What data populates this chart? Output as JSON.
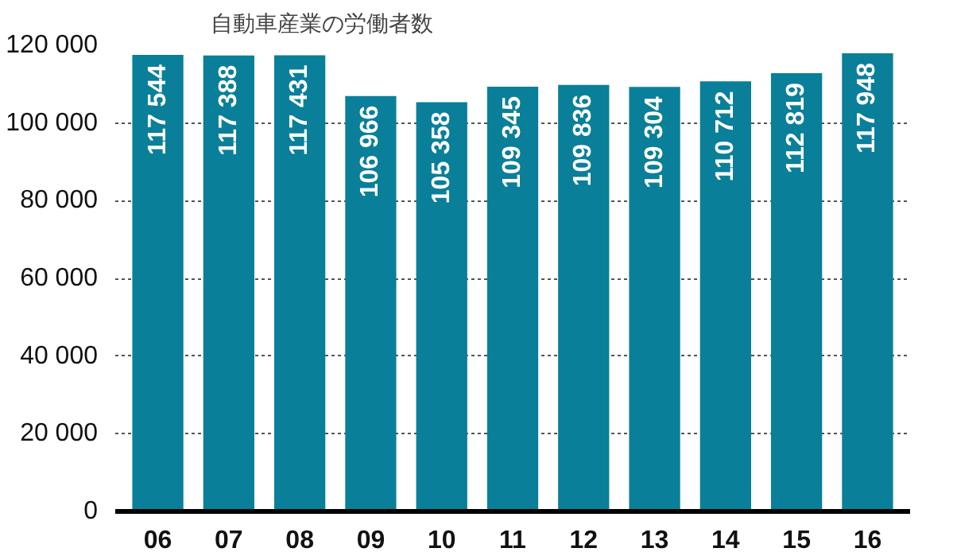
{
  "chart_data": {
    "type": "bar",
    "title": "自動車産業の労働者数",
    "categories": [
      "06",
      "07",
      "08",
      "09",
      "10",
      "11",
      "12",
      "13",
      "14",
      "15",
      "16"
    ],
    "values": [
      117544,
      117388,
      117431,
      106966,
      105358,
      109345,
      109836,
      109304,
      110712,
      112819,
      117948
    ],
    "value_labels": [
      "117 544",
      "117 388",
      "117 431",
      "106 966",
      "105 358",
      "109 345",
      "109 836",
      "109 304",
      "110 712",
      "112 819",
      "117 948"
    ],
    "color": "#0a7f99",
    "ylim": [
      0,
      120000
    ],
    "yticks": [
      {
        "value": 0,
        "label": "0"
      },
      {
        "value": 20000,
        "label": "20 000"
      },
      {
        "value": 40000,
        "label": "40 000"
      },
      {
        "value": 60000,
        "label": "60 000"
      },
      {
        "value": 80000,
        "label": "80 000"
      },
      {
        "value": 100000,
        "label": "100 000"
      },
      {
        "value": 120000,
        "label": "120 000"
      }
    ],
    "grid": "y"
  }
}
